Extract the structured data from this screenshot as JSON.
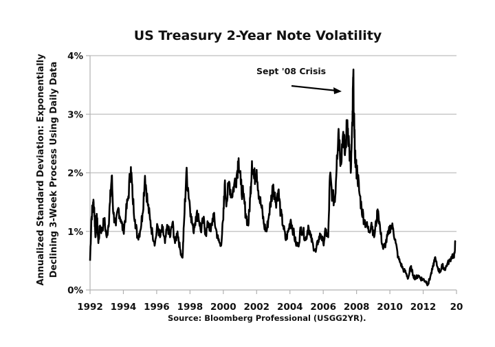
{
  "chart_data": {
    "type": "line",
    "title": "US Treasury 2-Year Note Volatility",
    "xlabel": "",
    "ylabel_lines": [
      "Annualized Standard Deviation: Exponentially",
      "Declining 3-Week Process Using Daily Data"
    ],
    "source": "Source:  Bloomberg Professional (USGG2YR).",
    "xlim": [
      1992,
      2014
    ],
    "ylim": [
      0,
      4
    ],
    "x_ticks": [
      1992,
      1994,
      1996,
      1998,
      2000,
      2002,
      2004,
      2006,
      2008,
      2010,
      2012,
      2014
    ],
    "x_tick_labels": [
      "1992",
      "1994",
      "1996",
      "1998",
      "2000",
      "2002",
      "2004",
      "2006",
      "2008",
      "2010",
      "2012",
      "20"
    ],
    "y_ticks": [
      0,
      1,
      2,
      3,
      4
    ],
    "y_tick_labels": [
      "0%",
      "1%",
      "2%",
      "3%",
      "4%"
    ],
    "grid": "horizontal",
    "legend": "none",
    "annotation": {
      "text": "Sept '08 Crisis",
      "points_to": [
        2007.8,
        3.64
      ]
    },
    "series": [
      {
        "name": "2-Year Note Volatility (%)",
        "color": "#000000",
        "points": [
          [
            1992.0,
            0.5
          ],
          [
            1992.08,
            1.2
          ],
          [
            1992.18,
            1.5
          ],
          [
            1992.25,
            1.4
          ],
          [
            1992.32,
            0.9
          ],
          [
            1992.4,
            1.3
          ],
          [
            1992.5,
            0.8
          ],
          [
            1992.6,
            1.1
          ],
          [
            1992.7,
            1.0
          ],
          [
            1992.85,
            1.2
          ],
          [
            1993.0,
            0.9
          ],
          [
            1993.1,
            1.1
          ],
          [
            1993.2,
            1.5
          ],
          [
            1993.3,
            1.95
          ],
          [
            1993.4,
            1.3
          ],
          [
            1993.55,
            1.1
          ],
          [
            1993.7,
            1.4
          ],
          [
            1993.85,
            1.2
          ],
          [
            1994.0,
            1.0
          ],
          [
            1994.15,
            1.3
          ],
          [
            1994.3,
            1.6
          ],
          [
            1994.45,
            2.1
          ],
          [
            1994.55,
            1.6
          ],
          [
            1994.7,
            1.2
          ],
          [
            1994.85,
            0.9
          ],
          [
            1995.0,
            1.0
          ],
          [
            1995.15,
            1.3
          ],
          [
            1995.3,
            1.95
          ],
          [
            1995.45,
            1.5
          ],
          [
            1995.6,
            1.2
          ],
          [
            1995.75,
            0.95
          ],
          [
            1995.9,
            0.8
          ],
          [
            1996.05,
            1.1
          ],
          [
            1996.2,
            0.9
          ],
          [
            1996.35,
            1.05
          ],
          [
            1996.5,
            0.8
          ],
          [
            1996.65,
            1.1
          ],
          [
            1996.8,
            0.9
          ],
          [
            1996.95,
            1.15
          ],
          [
            1997.1,
            0.8
          ],
          [
            1997.25,
            1.0
          ],
          [
            1997.4,
            0.7
          ],
          [
            1997.55,
            0.55
          ],
          [
            1997.65,
            1.2
          ],
          [
            1997.78,
            2.0
          ],
          [
            1997.9,
            1.7
          ],
          [
            1998.05,
            1.3
          ],
          [
            1998.2,
            1.0
          ],
          [
            1998.35,
            1.25
          ],
          [
            1998.5,
            1.3
          ],
          [
            1998.65,
            1.0
          ],
          [
            1998.8,
            1.2
          ],
          [
            1998.95,
            0.95
          ],
          [
            1999.1,
            1.15
          ],
          [
            1999.25,
            1.0
          ],
          [
            1999.4,
            1.3
          ],
          [
            1999.55,
            1.05
          ],
          [
            1999.7,
            0.85
          ],
          [
            1999.85,
            0.75
          ],
          [
            2000.0,
            1.2
          ],
          [
            2000.08,
            1.8
          ],
          [
            2000.2,
            1.5
          ],
          [
            2000.35,
            1.85
          ],
          [
            2000.5,
            1.6
          ],
          [
            2000.65,
            1.8
          ],
          [
            2000.8,
            1.95
          ],
          [
            2000.92,
            2.25
          ],
          [
            2001.05,
            1.8
          ],
          [
            2001.2,
            1.6
          ],
          [
            2001.35,
            1.3
          ],
          [
            2001.5,
            1.1
          ],
          [
            2001.62,
            1.6
          ],
          [
            2001.72,
            2.2
          ],
          [
            2001.85,
            1.9
          ],
          [
            2002.0,
            2.05
          ],
          [
            2002.15,
            1.6
          ],
          [
            2002.3,
            1.4
          ],
          [
            2002.45,
            1.1
          ],
          [
            2002.6,
            1.0
          ],
          [
            2002.75,
            1.3
          ],
          [
            2002.9,
            1.6
          ],
          [
            2003.0,
            1.8
          ],
          [
            2003.15,
            1.5
          ],
          [
            2003.3,
            1.7
          ],
          [
            2003.45,
            1.3
          ],
          [
            2003.6,
            1.1
          ],
          [
            2003.75,
            0.85
          ],
          [
            2003.9,
            1.0
          ],
          [
            2004.05,
            1.2
          ],
          [
            2004.2,
            1.0
          ],
          [
            2004.35,
            0.8
          ],
          [
            2004.5,
            0.75
          ],
          [
            2004.65,
            1.05
          ],
          [
            2004.8,
            1.0
          ],
          [
            2004.95,
            0.85
          ],
          [
            2005.1,
            1.1
          ],
          [
            2005.25,
            0.9
          ],
          [
            2005.4,
            0.75
          ],
          [
            2005.55,
            0.65
          ],
          [
            2005.7,
            0.85
          ],
          [
            2005.85,
            0.95
          ],
          [
            2006.0,
            0.8
          ],
          [
            2006.15,
            1.0
          ],
          [
            2006.3,
            0.9
          ],
          [
            2006.4,
            1.95
          ],
          [
            2006.55,
            1.6
          ],
          [
            2006.7,
            1.5
          ],
          [
            2006.82,
            2.3
          ],
          [
            2006.92,
            2.75
          ],
          [
            2007.05,
            2.2
          ],
          [
            2007.2,
            2.7
          ],
          [
            2007.3,
            2.3
          ],
          [
            2007.45,
            2.9
          ],
          [
            2007.55,
            2.5
          ],
          [
            2007.65,
            2.0
          ],
          [
            2007.75,
            2.8
          ],
          [
            2007.8,
            3.64
          ],
          [
            2007.87,
            2.6
          ],
          [
            2007.95,
            2.1
          ],
          [
            2008.05,
            2.0
          ],
          [
            2008.15,
            1.7
          ],
          [
            2008.3,
            1.4
          ],
          [
            2008.45,
            1.2
          ],
          [
            2008.6,
            1.1
          ],
          [
            2008.75,
            1.0
          ],
          [
            2008.9,
            1.15
          ],
          [
            2009.05,
            0.9
          ],
          [
            2009.2,
            1.2
          ],
          [
            2009.3,
            1.35
          ],
          [
            2009.45,
            0.95
          ],
          [
            2009.6,
            0.7
          ],
          [
            2009.75,
            0.8
          ],
          [
            2009.9,
            0.95
          ],
          [
            2010.05,
            1.1
          ],
          [
            2010.2,
            1.05
          ],
          [
            2010.35,
            0.8
          ],
          [
            2010.5,
            0.55
          ],
          [
            2010.65,
            0.45
          ],
          [
            2010.8,
            0.35
          ],
          [
            2010.95,
            0.3
          ],
          [
            2011.1,
            0.2
          ],
          [
            2011.25,
            0.4
          ],
          [
            2011.4,
            0.25
          ],
          [
            2011.55,
            0.2
          ],
          [
            2011.7,
            0.25
          ],
          [
            2011.85,
            0.2
          ],
          [
            2012.0,
            0.18
          ],
          [
            2012.15,
            0.15
          ],
          [
            2012.3,
            0.1
          ],
          [
            2012.45,
            0.25
          ],
          [
            2012.6,
            0.4
          ],
          [
            2012.7,
            0.55
          ],
          [
            2012.85,
            0.4
          ],
          [
            2013.0,
            0.3
          ],
          [
            2013.15,
            0.42
          ],
          [
            2013.3,
            0.35
          ],
          [
            2013.45,
            0.45
          ],
          [
            2013.6,
            0.5
          ],
          [
            2013.75,
            0.6
          ],
          [
            2013.85,
            0.55
          ],
          [
            2013.93,
            0.82
          ]
        ]
      }
    ]
  }
}
